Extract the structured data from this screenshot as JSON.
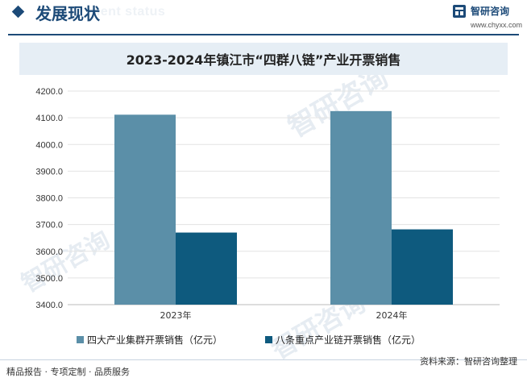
{
  "header": {
    "title": "发展现状",
    "subtitle_en": "ment status"
  },
  "logo": {
    "name": "智研咨询",
    "url": "www.chyxx.com"
  },
  "legend": {
    "series1": "四大产业集群开票销售（亿元）",
    "series2": "八条重点产业链开票销售（亿元）"
  },
  "footer": {
    "left": "精品报告 · 专项定制 · 品质服务",
    "source": "资料来源：智研咨询整理"
  },
  "watermark": "智研咨询",
  "colors": {
    "accent": "#1c4a78",
    "series1": "#5b8fa8",
    "series2": "#0e5a7e",
    "title_band": "#e6eef5"
  },
  "chart_data": {
    "type": "bar",
    "title": "2023-2024年镇江市“四群八链”产业开票销售",
    "categories": [
      "2023年",
      "2024年"
    ],
    "series": [
      {
        "name": "四大产业集群开票销售（亿元）",
        "values": [
          4111.5,
          4125.0
        ]
      },
      {
        "name": "八条重点产业链开票销售（亿元）",
        "values": [
          3670.0,
          3682.0
        ]
      }
    ],
    "ylim": [
      3400,
      4200
    ],
    "yticks": [
      "3400.0",
      "3500.0",
      "3600.0",
      "3700.0",
      "3800.0",
      "3900.0",
      "4000.0",
      "4100.0",
      "4200.0"
    ],
    "grid": true,
    "legend_position": "bottom"
  }
}
